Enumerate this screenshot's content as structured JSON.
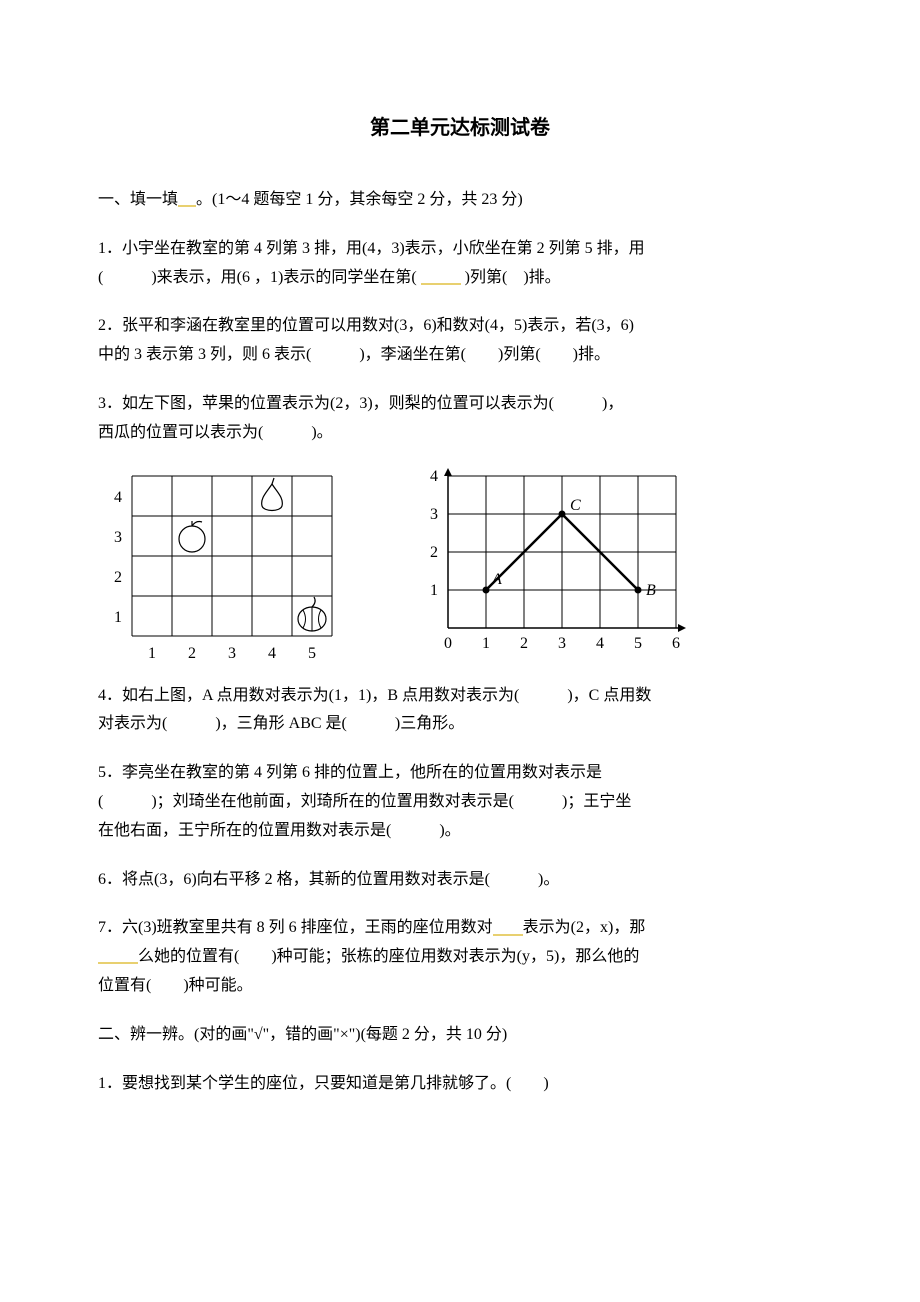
{
  "title": "第二单元达标测试卷",
  "section1": {
    "heading": "一、填一填",
    "suffix": "。(1～4 题每空 1 分，其余每空 2 分，共 23 分)"
  },
  "q1": {
    "p1": "1．小宇坐在教室的第 4 列第 3 排，用(4，3)表示，小欣坐在第 2 列第 5 排，用",
    "p2a": "(",
    "p2b": ")来表示，用(6 ，1)表示的同学坐在第(",
    "p2c": ")列第(",
    "p2d": ")排。"
  },
  "q2": {
    "p1": "2．张平和李涵在教室里的位置可以用数对(3，6)和数对(4，5)表示，若(3，6)",
    "p2": "中的 3 表示第 3 列，则 6 表示(　　　)，李涵坐在第(　　)列第(　　)排。"
  },
  "q3": {
    "p1": "3．如左下图，苹果的位置表示为(2，3)，则梨的位置可以表示为(　　　)，",
    "p2": "西瓜的位置可以表示为(　　　)。"
  },
  "fig_left": {
    "rows": 4,
    "cols": 5,
    "cell": 40,
    "y_labels": [
      "4",
      "3",
      "2",
      "1"
    ],
    "x_labels": [
      "1",
      "2",
      "3",
      "4",
      "5"
    ],
    "apple": {
      "col": 2,
      "row": 3
    },
    "pear": {
      "col": 4,
      "row": 4
    },
    "melon": {
      "col": 5,
      "row": 1
    },
    "line_color": "#000000",
    "bg": "#ffffff"
  },
  "fig_right": {
    "x_range": [
      0,
      6
    ],
    "y_range": [
      0,
      4
    ],
    "cell": 38,
    "points": {
      "A": {
        "x": 1,
        "y": 1,
        "label": "A"
      },
      "B": {
        "x": 5,
        "y": 1,
        "label": "B"
      },
      "C": {
        "x": 3,
        "y": 3,
        "label": "C"
      }
    },
    "x_labels": [
      "0",
      "1",
      "2",
      "3",
      "4",
      "5",
      "6"
    ],
    "y_labels": [
      "1",
      "2",
      "3",
      "4"
    ],
    "line_color": "#000000",
    "line_width": 2
  },
  "q4": {
    "p1": "4．如右上图，A 点用数对表示为(1，1)，B 点用数对表示为(　　　)，C 点用数",
    "p2": "对表示为(　　　)，三角形 ABC 是(　　　)三角形。"
  },
  "q5": {
    "p1": "5．李亮坐在教室的第 4 列第 6 排的位置上，他所在的位置用数对表示是",
    "p2": "(　　　)；刘琦坐在他前面，刘琦所在的位置用数对表示是(　　　)；王宁坐",
    "p3": "在他右面，王宁所在的位置用数对表示是(　　　)。"
  },
  "q6": "6．将点(3，6)向右平移 2 格，其新的位置用数对表示是(　　　)。",
  "q7": {
    "p1a": "7．六(3)班教室里共有 8 列 6 排座位，王雨的座位用数对",
    "p1b": "表示为(2，x)，那",
    "p2a": "么她的位置有(　　)种可能；张栋的座位用数对表示为(y，5)，那么他的",
    "p3": "位置有(　　)种可能。"
  },
  "section2": "二、辨一辨。(对的画\"√\"，错的画\"×\")(每题 2 分，共 10 分)",
  "b1": "1．要想找到某个学生的座位，只要知道是第几排就够了。(　　)"
}
